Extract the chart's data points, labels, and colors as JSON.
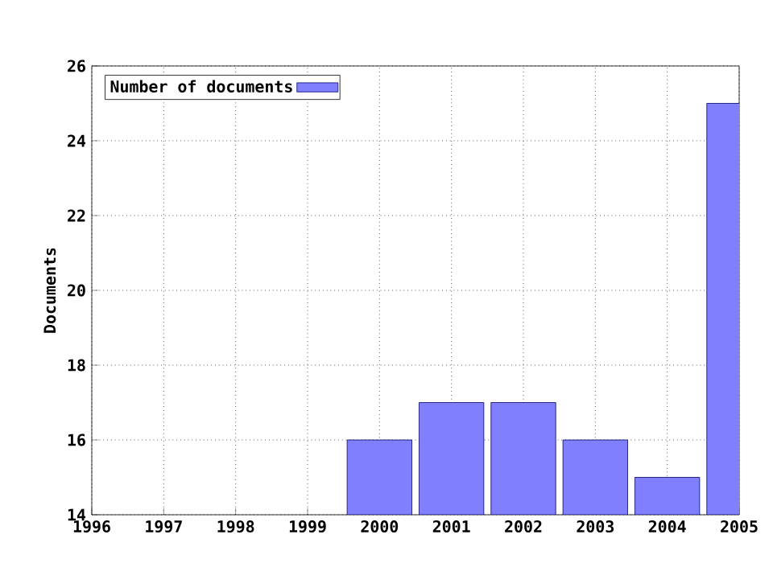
{
  "chart_data": {
    "type": "bar",
    "ylabel": "Documents",
    "x": [
      2000,
      2001,
      2002,
      2003,
      2004,
      2005
    ],
    "series": [
      {
        "name": "Number of documents",
        "color": "#8080ff",
        "values": [
          16,
          17,
          17,
          16,
          15,
          25
        ]
      }
    ],
    "xlim": [
      1996,
      2005
    ],
    "xticks": [
      1996,
      1997,
      1998,
      1999,
      2000,
      2001,
      2002,
      2003,
      2004,
      2005
    ],
    "ylim": [
      14,
      26
    ],
    "yticks": [
      14,
      16,
      18,
      20,
      22,
      24,
      26
    ],
    "grid": true,
    "legend": "top left"
  }
}
